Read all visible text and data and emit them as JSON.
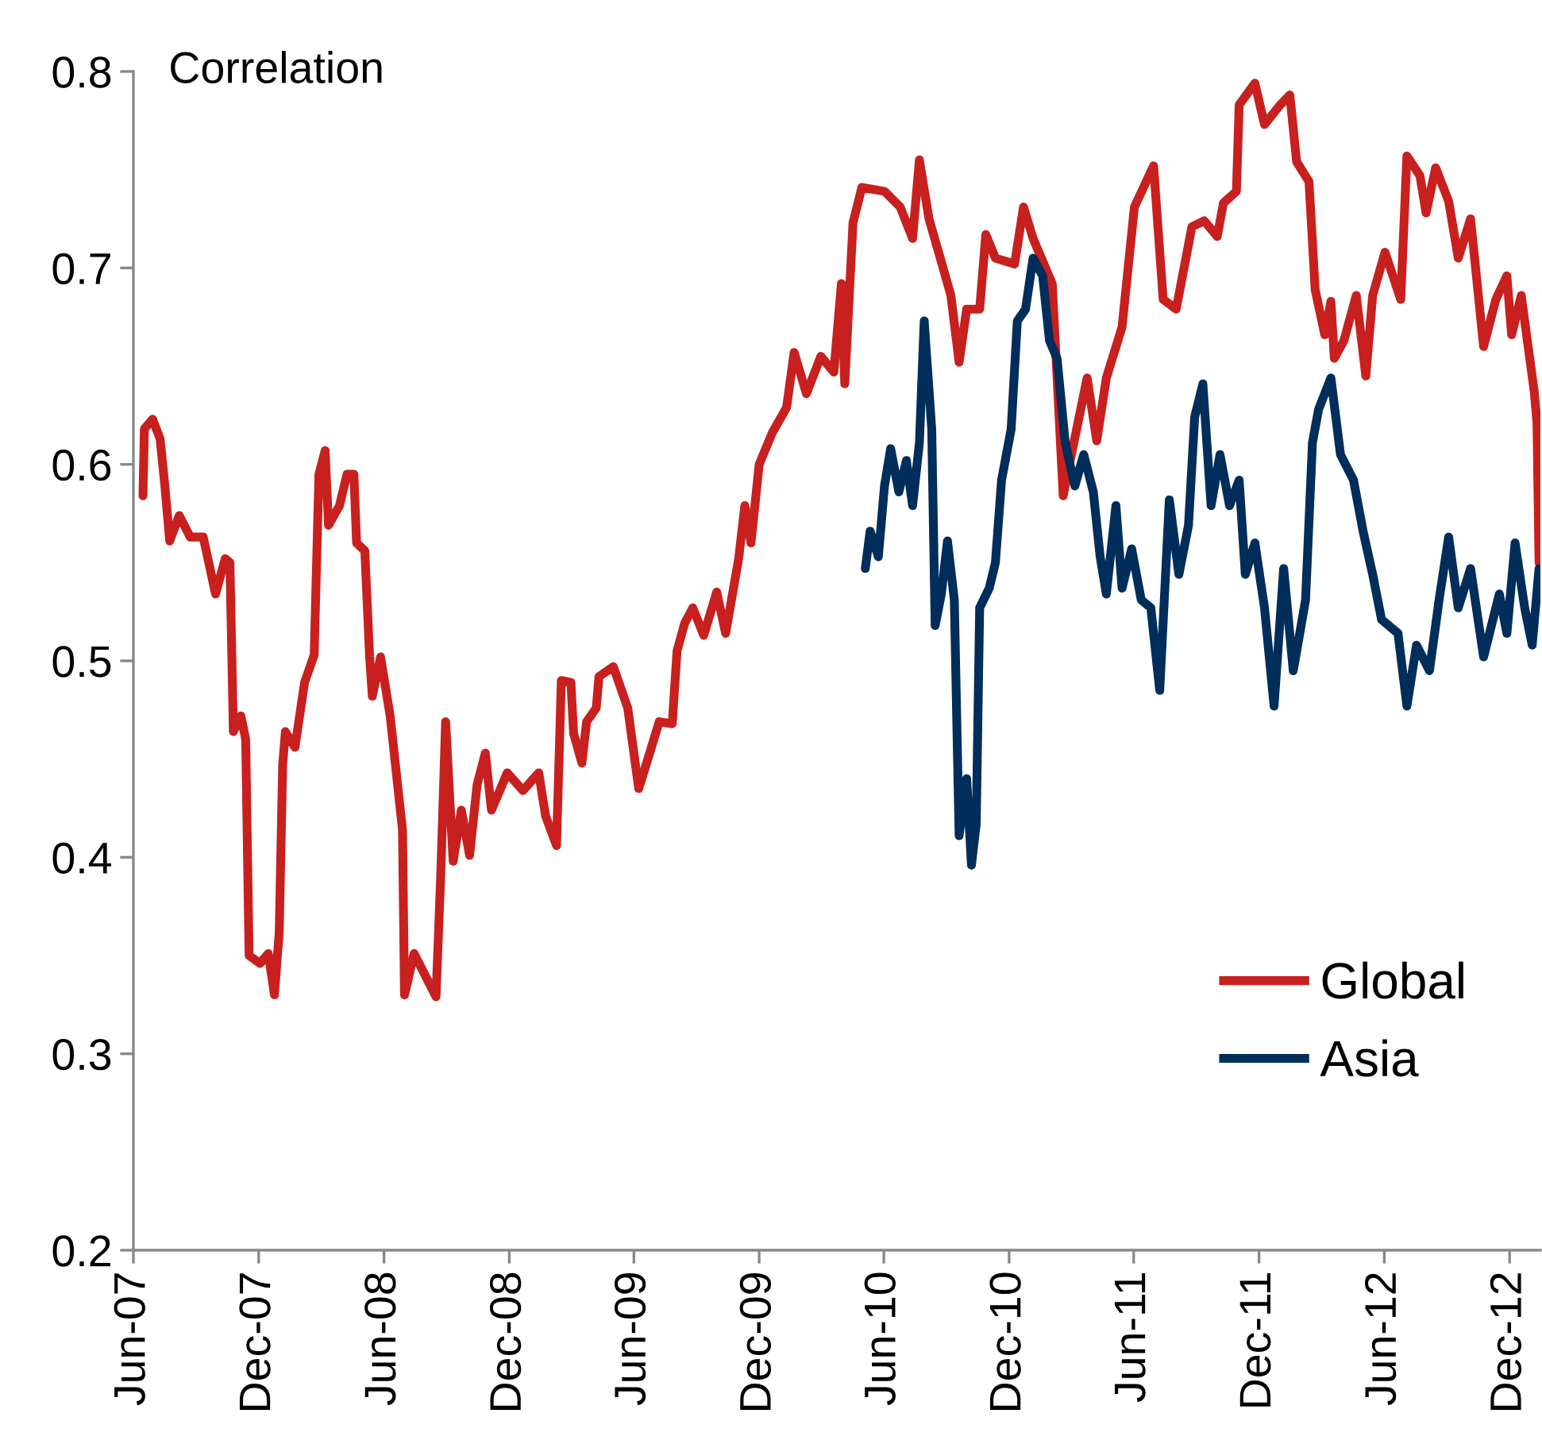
{
  "chart_data": {
    "type": "line",
    "ylabel": "Correlation",
    "xlim": [
      "2007-06-01",
      "2013-01-15"
    ],
    "xticks": [
      {
        "value": "2007-06-01",
        "label": "Jun-07"
      },
      {
        "value": "2007-12-01",
        "label": "Dec-07"
      },
      {
        "value": "2008-06-01",
        "label": "Jun-08"
      },
      {
        "value": "2008-12-01",
        "label": "Dec-08"
      },
      {
        "value": "2009-06-01",
        "label": "Jun-09"
      },
      {
        "value": "2009-12-01",
        "label": "Dec-09"
      },
      {
        "value": "2010-06-01",
        "label": "Jun-10"
      },
      {
        "value": "2010-12-01",
        "label": "Dec-10"
      },
      {
        "value": "2011-06-01",
        "label": "Jun-11"
      },
      {
        "value": "2011-12-01",
        "label": "Dec-11"
      },
      {
        "value": "2012-06-01",
        "label": "Jun-12"
      },
      {
        "value": "2012-12-01",
        "label": "Dec-12"
      }
    ],
    "ylim": [
      0.2,
      0.8
    ],
    "yticks": [
      0.2,
      0.3,
      0.4,
      0.5,
      0.6,
      0.7,
      0.8
    ],
    "grid": false,
    "legend": "bottom right",
    "marker": "none",
    "line_style": "solid",
    "series": [
      {
        "name": "Global",
        "color": "#c8201e",
        "x": [
          "2007-06-15",
          "2007-06-17",
          "2007-06-29",
          "2007-07-10",
          "2007-07-17",
          "2007-07-24",
          "2007-08-07",
          "2007-08-23",
          "2007-09-11",
          "2007-09-29",
          "2007-10-13",
          "2007-10-20",
          "2007-10-25",
          "2007-11-05",
          "2007-11-12",
          "2007-11-17",
          "2007-12-03",
          "2007-12-15",
          "2007-12-24",
          "2007-12-31",
          "2008-01-05",
          "2008-01-09",
          "2008-01-23",
          "2008-02-06",
          "2008-02-20",
          "2008-02-27",
          "2008-03-07",
          "2008-03-12",
          "2008-03-28",
          "2008-04-08",
          "2008-04-18",
          "2008-04-22",
          "2008-05-04",
          "2008-05-11",
          "2008-05-15",
          "2008-05-27",
          "2008-06-10",
          "2008-06-19",
          "2008-06-28",
          "2008-07-01",
          "2008-07-15",
          "2008-07-31",
          "2008-08-16",
          "2008-08-23",
          "2008-08-30",
          "2008-09-10",
          "2008-09-22",
          "2008-10-04",
          "2008-10-15",
          "2008-10-27",
          "2008-11-05",
          "2008-11-28",
          "2008-12-21",
          "2009-01-13",
          "2009-01-23",
          "2009-02-08",
          "2009-02-15",
          "2009-03-01",
          "2009-03-05",
          "2009-03-17",
          "2009-03-24",
          "2009-04-07",
          "2009-04-11",
          "2009-05-02",
          "2009-05-23",
          "2009-06-08",
          "2009-06-24",
          "2009-07-08",
          "2009-07-27",
          "2009-08-03",
          "2009-08-14",
          "2009-08-26",
          "2009-09-11",
          "2009-09-30",
          "2009-10-13",
          "2009-11-01",
          "2009-11-10",
          "2009-11-19",
          "2009-12-01",
          "2009-12-20",
          "2010-01-10",
          "2010-01-21",
          "2010-02-08",
          "2010-03-01",
          "2010-03-20",
          "2010-03-31",
          "2010-04-05",
          "2010-04-17",
          "2010-04-30",
          "2010-06-02",
          "2010-06-25",
          "2010-07-13",
          "2010-07-23",
          "2010-08-06",
          "2010-08-20",
          "2010-09-07",
          "2010-09-19",
          "2010-09-30",
          "2010-10-19",
          "2010-10-28",
          "2010-11-11",
          "2010-12-09",
          "2010-12-22",
          "2011-01-05",
          "2011-02-02",
          "2011-02-18",
          "2011-03-02",
          "2011-03-25",
          "2011-04-08",
          "2011-04-22",
          "2011-05-15",
          "2011-06-02",
          "2011-06-30",
          "2011-07-14",
          "2011-08-02",
          "2011-08-25",
          "2011-09-12",
          "2011-10-01",
          "2011-10-10",
          "2011-10-29",
          "2011-11-02",
          "2011-11-25",
          "2011-12-09",
          "2012-01-01",
          "2012-01-15",
          "2012-01-25",
          "2012-02-12",
          "2012-02-21",
          "2012-03-06",
          "2012-03-15",
          "2012-03-20",
          "2012-04-03",
          "2012-04-21",
          "2012-05-05",
          "2012-05-15",
          "2012-06-02",
          "2012-06-25",
          "2012-07-04",
          "2012-07-23",
          "2012-08-01",
          "2012-08-15",
          "2012-09-03",
          "2012-09-17",
          "2012-10-05",
          "2012-10-24",
          "2012-11-11",
          "2012-11-27",
          "2012-12-04",
          "2012-12-18",
          "2013-01-06",
          "2013-01-10",
          "2013-01-13"
        ],
        "values": [
          0.584,
          0.618,
          0.623,
          0.613,
          0.589,
          0.561,
          0.574,
          0.563,
          0.563,
          0.534,
          0.552,
          0.55,
          0.464,
          0.472,
          0.46,
          0.35,
          0.346,
          0.351,
          0.33,
          0.362,
          0.447,
          0.464,
          0.456,
          0.489,
          0.503,
          0.595,
          0.607,
          0.569,
          0.579,
          0.595,
          0.595,
          0.56,
          0.556,
          0.502,
          0.482,
          0.502,
          0.472,
          0.443,
          0.414,
          0.33,
          0.351,
          0.34,
          0.329,
          0.392,
          0.469,
          0.398,
          0.424,
          0.401,
          0.437,
          0.453,
          0.424,
          0.443,
          0.434,
          0.443,
          0.421,
          0.406,
          0.49,
          0.489,
          0.463,
          0.448,
          0.469,
          0.476,
          0.492,
          0.497,
          0.476,
          0.435,
          0.453,
          0.469,
          0.468,
          0.505,
          0.519,
          0.527,
          0.513,
          0.535,
          0.514,
          0.552,
          0.579,
          0.56,
          0.6,
          0.616,
          0.629,
          0.657,
          0.636,
          0.655,
          0.647,
          0.692,
          0.641,
          0.723,
          0.741,
          0.739,
          0.731,
          0.715,
          0.755,
          0.725,
          0.708,
          0.686,
          0.652,
          0.679,
          0.679,
          0.717,
          0.705,
          0.702,
          0.731,
          0.715,
          0.692,
          0.584,
          0.605,
          0.644,
          0.612,
          0.644,
          0.67,
          0.731,
          0.752,
          0.684,
          0.679,
          0.721,
          0.724,
          0.716,
          0.733,
          0.739,
          0.783,
          0.794,
          0.773,
          0.783,
          0.788,
          0.754,
          0.744,
          0.689,
          0.666,
          0.683,
          0.654,
          0.663,
          0.686,
          0.645,
          0.686,
          0.708,
          0.684,
          0.757,
          0.747,
          0.728,
          0.751,
          0.734,
          0.705,
          0.725,
          0.66,
          0.684,
          0.696,
          0.666,
          0.686,
          0.637,
          0.621,
          0.55
        ]
      },
      {
        "name": "Asia",
        "color": "#002d5a",
        "x": [
          "2010-05-05",
          "2010-05-12",
          "2010-05-24",
          "2010-06-02",
          "2010-06-11",
          "2010-06-23",
          "2010-07-04",
          "2010-07-13",
          "2010-07-23",
          "2010-07-30",
          "2010-08-10",
          "2010-08-15",
          "2010-08-24",
          "2010-09-02",
          "2010-09-12",
          "2010-09-19",
          "2010-09-30",
          "2010-10-07",
          "2010-10-14",
          "2010-10-19",
          "2010-11-02",
          "2010-11-11",
          "2010-11-20",
          "2010-12-04",
          "2010-12-13",
          "2010-12-25",
          "2011-01-05",
          "2011-01-19",
          "2011-01-29",
          "2011-02-09",
          "2011-02-21",
          "2011-03-07",
          "2011-03-20",
          "2011-04-03",
          "2011-04-13",
          "2011-04-22",
          "2011-05-06",
          "2011-05-15",
          "2011-05-29",
          "2011-06-12",
          "2011-06-26",
          "2011-07-09",
          "2011-07-23",
          "2011-08-06",
          "2011-08-20",
          "2011-08-29",
          "2011-09-10",
          "2011-09-22",
          "2011-10-05",
          "2011-10-19",
          "2011-11-02",
          "2011-11-11",
          "2011-11-25",
          "2011-12-09",
          "2011-12-23",
          "2012-01-06",
          "2012-01-20",
          "2012-02-07",
          "2012-02-17",
          "2012-02-26",
          "2012-03-15",
          "2012-03-29",
          "2012-04-17",
          "2012-05-01",
          "2012-05-15",
          "2012-05-28",
          "2012-06-21",
          "2012-07-04",
          "2012-07-18",
          "2012-08-06",
          "2012-08-20",
          "2012-09-03",
          "2012-09-17",
          "2012-10-05",
          "2012-10-24",
          "2012-11-16",
          "2012-11-27",
          "2012-12-09",
          "2012-12-23",
          "2013-01-03",
          "2013-01-13"
        ],
        "values": [
          0.547,
          0.566,
          0.553,
          0.589,
          0.608,
          0.586,
          0.602,
          0.579,
          0.611,
          0.673,
          0.618,
          0.518,
          0.534,
          0.561,
          0.531,
          0.411,
          0.44,
          0.396,
          0.417,
          0.527,
          0.537,
          0.55,
          0.592,
          0.618,
          0.673,
          0.679,
          0.705,
          0.696,
          0.663,
          0.654,
          0.611,
          0.589,
          0.605,
          0.586,
          0.553,
          0.534,
          0.579,
          0.537,
          0.557,
          0.531,
          0.527,
          0.485,
          0.582,
          0.544,
          0.569,
          0.624,
          0.641,
          0.579,
          0.605,
          0.579,
          0.592,
          0.544,
          0.56,
          0.527,
          0.477,
          0.547,
          0.495,
          0.531,
          0.611,
          0.628,
          0.644,
          0.605,
          0.592,
          0.566,
          0.544,
          0.521,
          0.514,
          0.477,
          0.508,
          0.495,
          0.531,
          0.563,
          0.527,
          0.547,
          0.502,
          0.534,
          0.514,
          0.56,
          0.527,
          0.508,
          0.547
        ]
      }
    ]
  }
}
